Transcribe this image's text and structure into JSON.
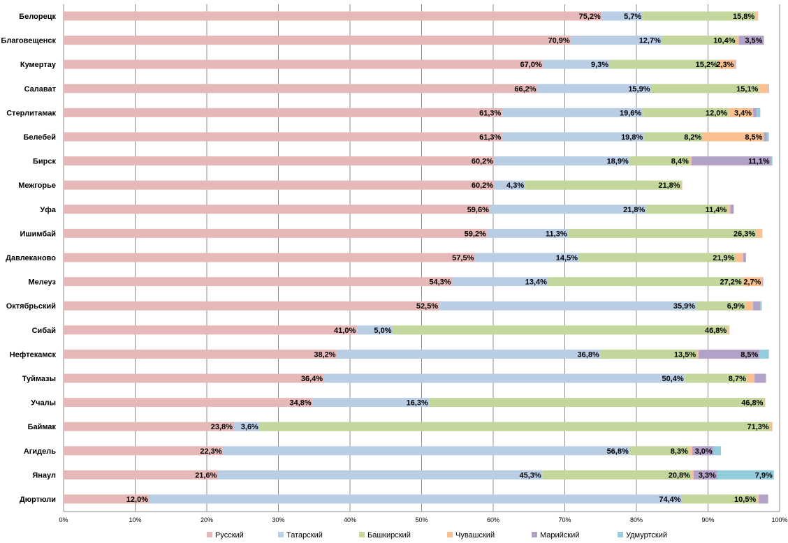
{
  "chart_data": {
    "type": "bar",
    "orientation": "horizontal",
    "stacked": "percent",
    "categories": [
      "Белорецк",
      "Благовещенск",
      "Кумертау",
      "Салават",
      "Стерлитамак",
      "Белебей",
      "Бирск",
      "Межгорье",
      "Уфа",
      "Ишимбай",
      "Давлеканово",
      "Мелеуз",
      "Октябрьский",
      "Сибай",
      "Нефтекамск",
      "Туймазы",
      "Учалы",
      "Баймак",
      "Агидель",
      "Янаул",
      "Дюртюли"
    ],
    "series": [
      {
        "name": "Русский",
        "color": "#e6b9b8",
        "values": [
          75.2,
          70.9,
          67.0,
          66.2,
          61.3,
          61.3,
          60.2,
          60.2,
          59.6,
          59.2,
          57.5,
          54.3,
          52.5,
          41.0,
          38.2,
          36.4,
          34.8,
          23.8,
          22.3,
          21.6,
          12.0
        ],
        "labels": [
          "75,2%",
          "70,9%",
          "67,0%",
          "66,2%",
          "61,3%",
          "61,3%",
          "60,2%",
          "60,2%",
          "59,6%",
          "59,2%",
          "57,5%",
          "54,3%",
          "52,5%",
          "41,0%",
          "38,2%",
          "36,4%",
          "34,8%",
          "23,8%",
          "22,3%",
          "21,6%",
          "12,0%"
        ]
      },
      {
        "name": "Татарский",
        "color": "#b9cde5",
        "values": [
          5.7,
          12.7,
          9.3,
          15.9,
          19.6,
          19.8,
          18.9,
          4.3,
          21.8,
          11.3,
          14.5,
          13.4,
          35.9,
          5.0,
          36.8,
          50.4,
          16.3,
          3.6,
          56.8,
          45.3,
          74.4
        ],
        "labels": [
          "5,7%",
          "12,7%",
          "9,3%",
          "15,9%",
          "19,6%",
          "19,8%",
          "18,9%",
          "4,3%",
          "21,8%",
          "11,3%",
          "14,5%",
          "13,4%",
          "35,9%",
          "5,0%",
          "36,8%",
          "50,4%",
          "16,3%",
          "3,6%",
          "56,8%",
          "45,3%",
          "74,4%"
        ]
      },
      {
        "name": "Башкирский",
        "color": "#c3d69b",
        "values": [
          15.8,
          10.4,
          15.2,
          15.1,
          12.0,
          8.2,
          8.4,
          21.8,
          11.4,
          26.3,
          21.9,
          27.2,
          6.9,
          46.8,
          13.5,
          8.7,
          46.8,
          71.3,
          8.3,
          20.8,
          10.5
        ],
        "labels": [
          "15,8%",
          "10,4%",
          "15,2%",
          "15,1%",
          "12,0%",
          "8,2%",
          "8,4%",
          "21,8%",
          "11,4%",
          "26,3%",
          "21,9%",
          "27,2%",
          "6,9%",
          "46,8%",
          "13,5%",
          "8,7%",
          "46,8%",
          "71,3%",
          "8,3%",
          "20,8%",
          "10,5%"
        ]
      },
      {
        "name": "Чувашский",
        "color": "#fac090",
        "values": [
          0.3,
          0.3,
          2.3,
          1.2,
          3.4,
          8.5,
          0.2,
          0.1,
          0.3,
          0.8,
          1.0,
          2.7,
          1.0,
          0.2,
          0.2,
          1.0,
          0.1,
          0.3,
          0.4,
          0.3,
          0.2
        ],
        "labels": [
          "",
          "",
          "2,3%",
          "",
          "3,4%",
          "8,5%",
          "",
          "",
          "",
          "",
          "",
          "2,7%",
          "",
          "",
          "",
          "",
          "",
          "",
          "",
          "",
          ""
        ]
      },
      {
        "name": "Марийский",
        "color": "#b3a2c7",
        "values": [
          0.0,
          3.5,
          0.1,
          0.1,
          0.5,
          0.4,
          11.1,
          0.0,
          0.5,
          0.0,
          0.4,
          0.1,
          1.0,
          0.0,
          8.5,
          1.6,
          0.0,
          0.0,
          3.0,
          3.3,
          1.3
        ],
        "labels": [
          "",
          "3,5%",
          "",
          "",
          "",
          "",
          "11,1%",
          "",
          "",
          "",
          "",
          "",
          "",
          "",
          "8,5%",
          "",
          "",
          "",
          "3,0%",
          "3,3%",
          ""
        ]
      },
      {
        "name": "Удмуртский",
        "color": "#93cddd",
        "values": [
          0.0,
          0.0,
          0.0,
          0.0,
          0.5,
          0.3,
          0.2,
          0.0,
          0.0,
          0.0,
          0.0,
          0.0,
          0.2,
          0.0,
          1.3,
          0.0,
          0.0,
          0.0,
          1.0,
          7.9,
          0.0
        ],
        "labels": [
          "",
          "",
          "",
          "",
          "",
          "",
          "",
          "",
          "",
          "",
          "",
          "",
          "",
          "",
          "",
          "",
          "",
          "",
          "",
          "7,9%",
          ""
        ]
      }
    ],
    "xlim": [
      0,
      100
    ],
    "x_ticks": [
      "0%",
      "10%",
      "20%",
      "30%",
      "40%",
      "50%",
      "60%",
      "70%",
      "80%",
      "90%",
      "100%"
    ],
    "grid": true,
    "legend": "bottom",
    "title": "",
    "xlabel": "",
    "ylabel": ""
  }
}
